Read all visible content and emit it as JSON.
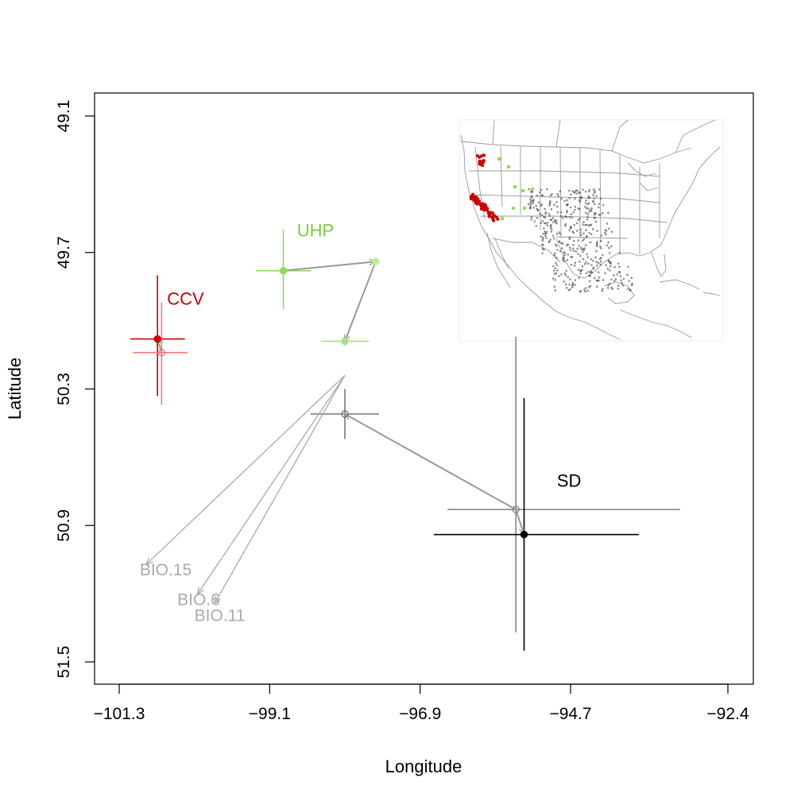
{
  "chart_data": {
    "type": "scatter",
    "xlabel": "Longitude",
    "ylabel": "Latitude",
    "xlim": [
      -101.6,
      -92.2
    ],
    "ylim": [
      51.6,
      49.0
    ],
    "y_axis_reversed": true,
    "x_ticks": [
      -101.3,
      -99.1,
      -96.9,
      -94.7,
      -92.4
    ],
    "x_tick_labels": [
      "−101.3",
      "−99.1",
      "−96.9",
      "−94.7",
      "−92.4"
    ],
    "y_ticks": [
      49.1,
      49.7,
      50.3,
      50.9,
      51.5
    ],
    "y_tick_labels": [
      "49.1",
      "49.7",
      "50.3",
      "50.9",
      "51.5"
    ],
    "grid": false,
    "groups": [
      {
        "label": "CCV",
        "color": "#cc0000",
        "label_pos": [
          -100.6,
          49.93
        ],
        "points": [
          {
            "x": -100.74,
            "y": 50.08,
            "x_range": [
              -101.14,
              -100.34
            ],
            "y_range": [
              49.8,
              50.33
            ],
            "filled": true,
            "color": "#cc0000"
          },
          {
            "x": -100.68,
            "y": 50.14,
            "x_range": [
              -101.1,
              -100.3
            ],
            "y_range": [
              49.92,
              50.37
            ],
            "filled": false,
            "color": "#ee7777"
          }
        ]
      },
      {
        "label": "UHP",
        "color": "#77cc44",
        "label_pos": [
          -98.7,
          49.63
        ],
        "points": [
          {
            "x": -98.9,
            "y": 49.78,
            "x_range": [
              -99.3,
              -98.5
            ],
            "y_range": [
              49.6,
              49.95
            ],
            "filled": true,
            "color": "#88dd55"
          },
          {
            "x": -97.55,
            "y": 49.74,
            "x_range": null,
            "y_range": null,
            "filled": true,
            "color": "#bbee99"
          },
          {
            "x": -98.0,
            "y": 50.09,
            "x_range": [
              -98.35,
              -97.65
            ],
            "y_range": [
              50.07,
              50.11
            ],
            "filled": true,
            "color": "#aadd88"
          }
        ]
      },
      {
        "label": "SD",
        "color": "#000000",
        "label_pos": [
          -94.9,
          50.73
        ],
        "points": [
          {
            "x": -98.0,
            "y": 50.41,
            "x_range": [
              -98.5,
              -97.5
            ],
            "y_range": [
              50.3,
              50.52
            ],
            "filled": false,
            "color": "#777777"
          },
          {
            "x": -95.5,
            "y": 50.83,
            "x_range": [
              -96.5,
              -93.1
            ],
            "y_range": [
              50.07,
              51.37
            ],
            "filled": false,
            "color": "#888888"
          },
          {
            "x": -95.38,
            "y": 50.94,
            "x_range": [
              -96.7,
              -93.7
            ],
            "y_range": [
              50.34,
              51.45
            ],
            "filled": true,
            "color": "#000000"
          }
        ]
      }
    ],
    "trajectories": [
      {
        "from": [
          -100.68,
          50.14
        ],
        "to": [
          -100.74,
          50.08
        ],
        "color": "#999999"
      },
      {
        "from": [
          -98.9,
          49.78
        ],
        "to": [
          -97.55,
          49.74
        ],
        "color": "#999999"
      },
      {
        "from": [
          -97.55,
          49.74
        ],
        "to": [
          -98.0,
          50.09
        ],
        "color": "#999999"
      },
      {
        "from": [
          -95.5,
          50.83
        ],
        "to": [
          -98.0,
          50.41
        ],
        "color": "#999999"
      },
      {
        "from": [
          -95.5,
          50.83
        ],
        "to": [
          -95.38,
          50.94
        ],
        "color": "#999999"
      }
    ],
    "biplot_vectors": [
      {
        "label": "BIO.15",
        "origin": [
          -98.0,
          50.24
        ],
        "to": [
          -100.9,
          51.07
        ],
        "label_pos": [
          -101.0,
          51.12
        ],
        "color": "#aaaaaa"
      },
      {
        "label": "BIO.6",
        "origin": [
          -98.0,
          50.24
        ],
        "to": [
          -100.15,
          51.2
        ],
        "label_pos": [
          -100.45,
          51.25
        ],
        "color": "#aaaaaa"
      },
      {
        "label": "BIO.11",
        "origin": [
          -98.0,
          50.24
        ],
        "to": [
          -99.9,
          51.24
        ],
        "label_pos": [
          -100.2,
          51.32
        ],
        "color": "#aaaaaa"
      }
    ]
  },
  "inset_map": {
    "description": "Map of western North America showing sample locations",
    "colors": {
      "CCV": "#cc0000",
      "UHP": "#88dd55",
      "SD": "#333333",
      "borders": "#999999"
    }
  }
}
